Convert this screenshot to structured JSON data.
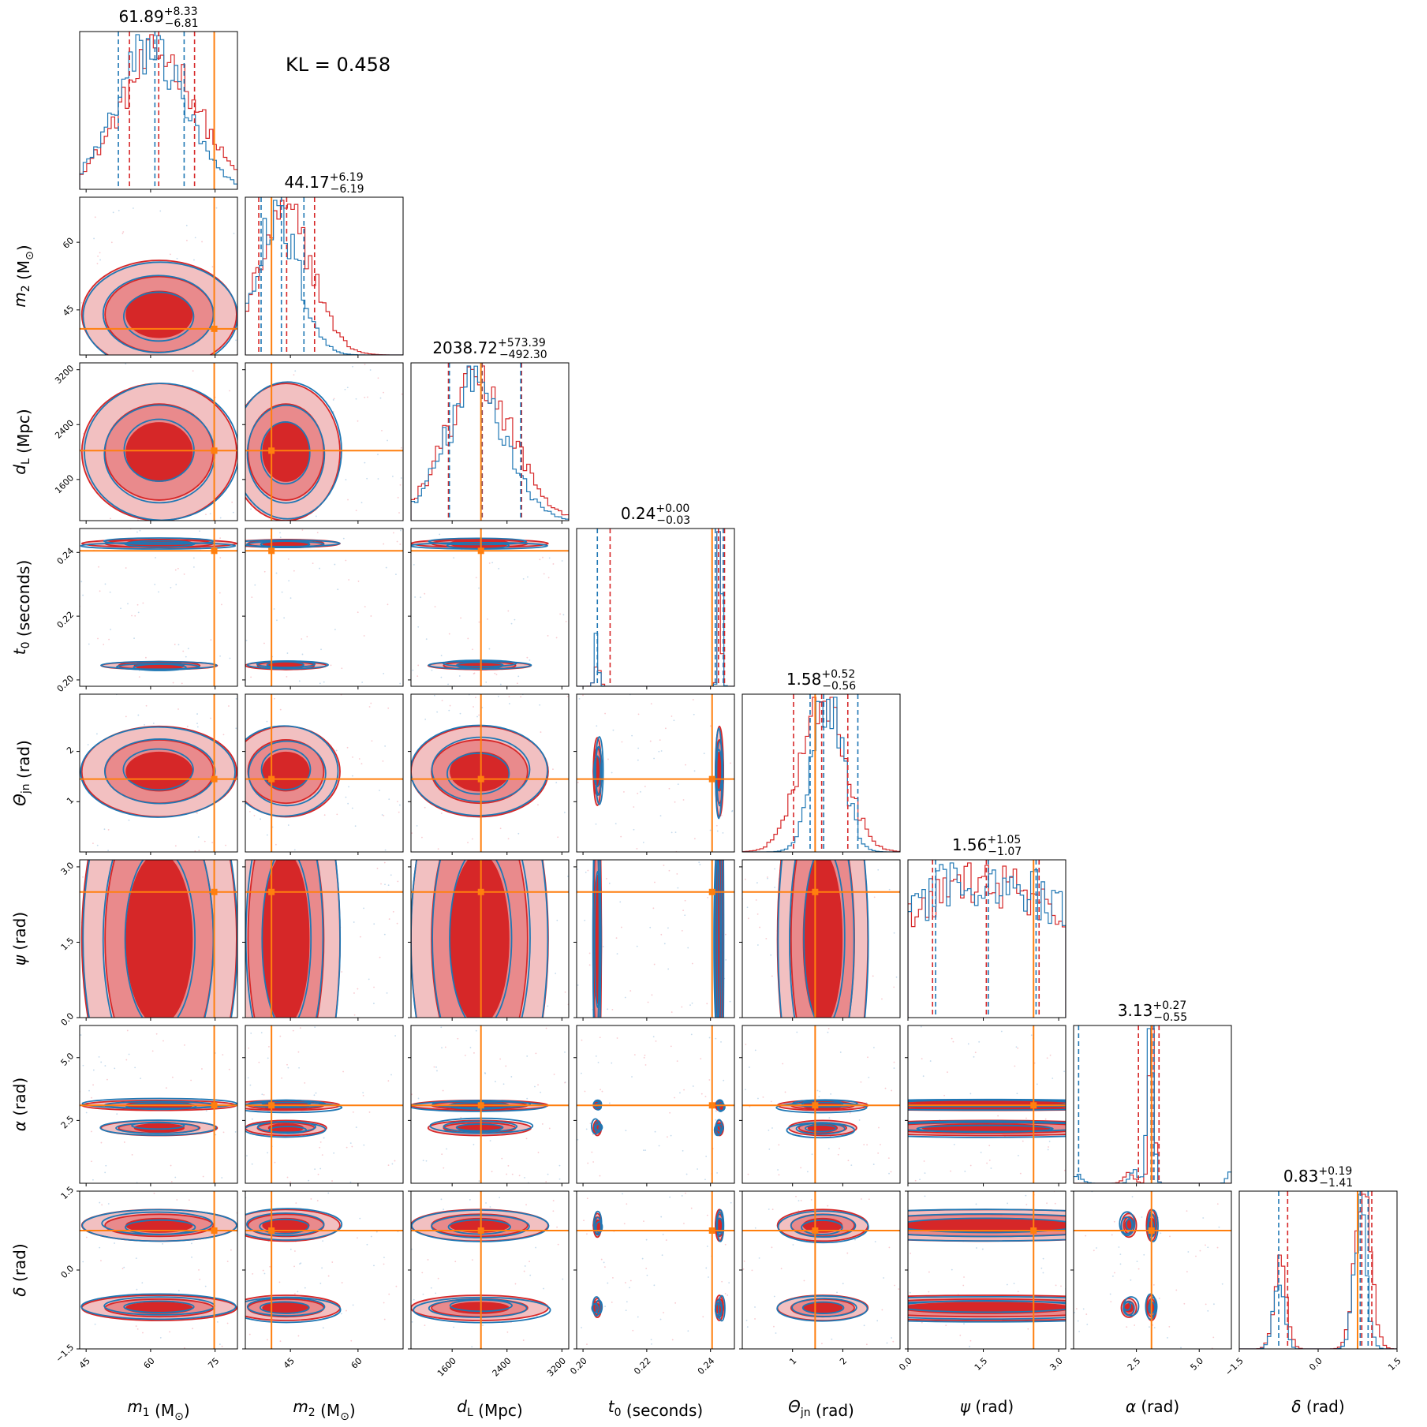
{
  "chart_data": {
    "type": "corner",
    "kl_text": "KL = 0.458",
    "series": [
      {
        "name": "",
        "color": "#d62728"
      },
      {
        "name": "",
        "color": "#1f77b4"
      }
    ],
    "truth_color": "#ff7f0e",
    "parameters": [
      {
        "name": "m1",
        "label": "m_1 (M_⊙)",
        "lim": [
          43.5,
          80.2
        ],
        "truth": 74.8,
        "ticks": [
          {
            "v": 45,
            "t": "45"
          },
          {
            "v": 60,
            "t": "60"
          },
          {
            "v": 75,
            "t": "75"
          }
        ],
        "title": {
          "median": "61.89",
          "plus": "+8.33",
          "minus": "−6.81"
        },
        "red_q": [
          55.08,
          61.89,
          70.22
        ],
        "blue_q": [
          52.5,
          61.0,
          67.8
        ],
        "hist": {
          "peaks": [
            [
              62,
              9,
              1
            ]
          ],
          "blue_peaks": [
            [
              60,
              8,
              1
            ]
          ]
        }
      },
      {
        "name": "m2",
        "label": "m_2 (M_⊙)",
        "lim": [
          35.0,
          70.0
        ],
        "truth": 40.8,
        "ticks": [
          {
            "v": 45,
            "t": "45"
          },
          {
            "v": 60,
            "t": "60"
          }
        ],
        "title": {
          "median": "44.17",
          "plus": "+6.19",
          "minus": "−6.19"
        },
        "red_q": [
          37.98,
          44.17,
          50.36
        ],
        "blue_q": [
          38.5,
          43.0,
          48.0
        ],
        "hist": {
          "peaks": [
            [
              44,
              6,
              1
            ]
          ],
          "blue_peaks": [
            [
              42,
              5,
              1
            ]
          ]
        }
      },
      {
        "name": "dL",
        "label": "d_L (Mpc)",
        "lim": [
          1000,
          3300
        ],
        "truth": 2020,
        "ticks": [
          {
            "v": 1600,
            "t": "1600"
          },
          {
            "v": 2400,
            "t": "2400"
          },
          {
            "v": 3200,
            "t": "3200"
          }
        ],
        "title": {
          "median": "2038.72",
          "plus": "+573.39",
          "minus": "−492.30"
        },
        "red_q": [
          1546.42,
          2038.72,
          2612.11
        ],
        "blue_q": [
          1560,
          2030,
          2600
        ],
        "hist": {
          "peaks": [
            [
              2000,
              500,
              1
            ]
          ],
          "blue_peaks": [
            [
              1950,
              450,
              1
            ]
          ]
        }
      },
      {
        "name": "t0",
        "label": "t_0 (seconds)",
        "lim": [
          0.198,
          0.2475
        ],
        "truth": 0.2405,
        "ticks": [
          {
            "v": 0.2,
            "t": "0.20"
          },
          {
            "v": 0.22,
            "t": "0.22"
          },
          {
            "v": 0.24,
            "t": "0.24"
          }
        ],
        "title": {
          "median": "0.24",
          "plus": "+0.00",
          "minus": "−0.03"
        },
        "red_q": [
          0.2085,
          0.2425,
          0.2444
        ],
        "blue_q": [
          0.2045,
          0.2415,
          0.244
        ],
        "hist": {
          "peaks": [
            [
              0.2428,
              0.0005,
              1
            ],
            [
              0.2045,
              0.0008,
              0.15
            ]
          ],
          "blue_peaks": [
            [
              0.243,
              0.0005,
              1
            ],
            [
              0.2043,
              0.0006,
              0.2
            ]
          ]
        }
      },
      {
        "name": "theta_jn",
        "label": "Θ_jn (rad)",
        "lim": [
          0.0,
          3.14
        ],
        "truth": 1.45,
        "ticks": [
          {
            "v": 1,
            "t": "1"
          },
          {
            "v": 2,
            "t": "2"
          }
        ],
        "title": {
          "median": "1.58",
          "plus": "+0.52",
          "minus": "−0.56"
        },
        "red_q": [
          1.02,
          1.58,
          2.1
        ],
        "blue_q": [
          1.35,
          1.62,
          2.3
        ],
        "hist": {
          "peaks": [
            [
              1.6,
              0.45,
              1
            ]
          ],
          "blue_peaks": [
            [
              1.7,
              0.3,
              1
            ]
          ]
        }
      },
      {
        "name": "psi",
        "label": "ψ (rad)",
        "lim": [
          0.0,
          3.14
        ],
        "truth": 2.5,
        "ticks": [
          {
            "v": 0.0,
            "t": "0.0"
          },
          {
            "v": 1.5,
            "t": "1.5"
          },
          {
            "v": 3.0,
            "t": "3.0"
          }
        ],
        "title": {
          "median": "1.56",
          "plus": "+1.05",
          "minus": "−1.07"
        },
        "red_q": [
          0.49,
          1.56,
          2.61
        ],
        "blue_q": [
          0.55,
          1.6,
          2.55
        ],
        "hist": {
          "peaks": [
            [
              1.56,
              2.0,
              1
            ]
          ],
          "blue_peaks": [
            [
              1.56,
              2.0,
              1
            ]
          ]
        }
      },
      {
        "name": "alpha",
        "label": "α (rad)",
        "lim": [
          0.0,
          6.28
        ],
        "truth": 3.1,
        "ticks": [
          {
            "v": 2.5,
            "t": "2.5"
          },
          {
            "v": 5.0,
            "t": "5.0"
          }
        ],
        "title": {
          "median": "3.13",
          "plus": "+0.27",
          "minus": "−0.55"
        },
        "red_q": [
          2.58,
          3.13,
          3.4
        ],
        "blue_q": [
          0.2,
          3.08,
          3.2
        ],
        "hist": {
          "peaks": [
            [
              3.1,
              0.1,
              1
            ],
            [
              2.2,
              0.2,
              0.05
            ]
          ],
          "blue_peaks": [
            [
              3.05,
              0.12,
              1
            ],
            [
              2.4,
              0.15,
              0.08
            ],
            [
              0.15,
              0.2,
              0.05
            ],
            [
              6.2,
              0.1,
              0.06
            ]
          ]
        }
      },
      {
        "name": "delta",
        "label": "δ (rad)",
        "lim": [
          -1.5,
          1.5
        ],
        "truth": 0.75,
        "ticks": [
          {
            "v": -1.5,
            "t": "−1.5"
          },
          {
            "v": 0.0,
            "t": "0.0"
          },
          {
            "v": 1.5,
            "t": "1.5"
          }
        ],
        "title": {
          "median": "0.83",
          "plus": "+0.19",
          "minus": "−1.41"
        },
        "red_q": [
          -0.58,
          0.83,
          1.02
        ],
        "blue_q": [
          -0.75,
          0.8,
          0.95
        ],
        "hist": {
          "peaks": [
            [
              0.85,
              0.15,
              1
            ],
            [
              -0.72,
              0.12,
              0.5
            ]
          ],
          "blue_peaks": [
            [
              0.8,
              0.12,
              1
            ],
            [
              -0.75,
              0.1,
              0.6
            ]
          ]
        }
      }
    ]
  }
}
